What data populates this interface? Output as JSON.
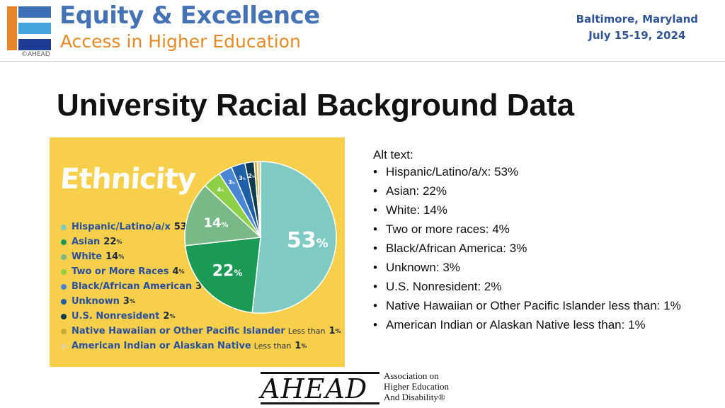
{
  "header": {
    "brand_title": "Equity & Excellence",
    "brand_subtitle": "Access in Higher Education",
    "copyright": "©AHEAD",
    "event_location": "Baltimore, Maryland",
    "event_dates": "July 15-19, 2024",
    "logo_colors": [
      "#e8852a",
      "#3c6fb6",
      "#41a4dc",
      "#1f3a93"
    ]
  },
  "slide": {
    "title": "University Racial Background Data"
  },
  "infographic": {
    "heading": "Ethnicity",
    "background": "#f7cf4a"
  },
  "chart_data": {
    "type": "pie",
    "title": "Ethnicity",
    "slices": [
      {
        "label": "Hispanic/Latino/a/x",
        "value": 53,
        "display": "53",
        "suffix": "",
        "color": "#7fcac3"
      },
      {
        "label": "Asian",
        "value": 22,
        "display": "22",
        "suffix": "",
        "color": "#1a9a55"
      },
      {
        "label": "White",
        "value": 14,
        "display": "14",
        "suffix": "",
        "color": "#79b988"
      },
      {
        "label": "Two or More Races",
        "value": 4,
        "display": "4",
        "suffix": "",
        "color": "#8dd047"
      },
      {
        "label": "Black/African American",
        "value": 3,
        "display": "3",
        "suffix": "",
        "color": "#4a86d3"
      },
      {
        "label": "Unknown",
        "value": 3,
        "display": "3",
        "suffix": "",
        "color": "#1f5fa8"
      },
      {
        "label": "U.S. Nonresident",
        "value": 2,
        "display": "2",
        "suffix": "",
        "color": "#0e3a4f"
      },
      {
        "label": "Native Hawaiian or Other Pacific Islander",
        "value": 0.7,
        "display": "1",
        "suffix": "Less than",
        "color": "#c9ab3a"
      },
      {
        "label": "American Indian or Alaskan Native",
        "value": 0.7,
        "display": "1",
        "suffix": "Less than",
        "color": "#e8cf98"
      }
    ],
    "legend_position": "left"
  },
  "alt_text": {
    "heading": "Alt text:",
    "items": [
      "Hispanic/Latino/a/x: 53%",
      "Asian: 22%",
      "White: 14%",
      "Two or more races: 4%",
      "Black/African America: 3%",
      "Unknown: 3%",
      "U.S. Nonresident: 2%",
      "Native Hawaiian or Other Pacific Islander less than: 1%",
      "American Indian or Alaskan Native less than: 1%"
    ]
  },
  "footer": {
    "org_acronym": "AHEAD",
    "org_line1": "Association on",
    "org_line2": "Higher Education",
    "org_line3": "And Disability",
    "registered_mark": "®"
  }
}
